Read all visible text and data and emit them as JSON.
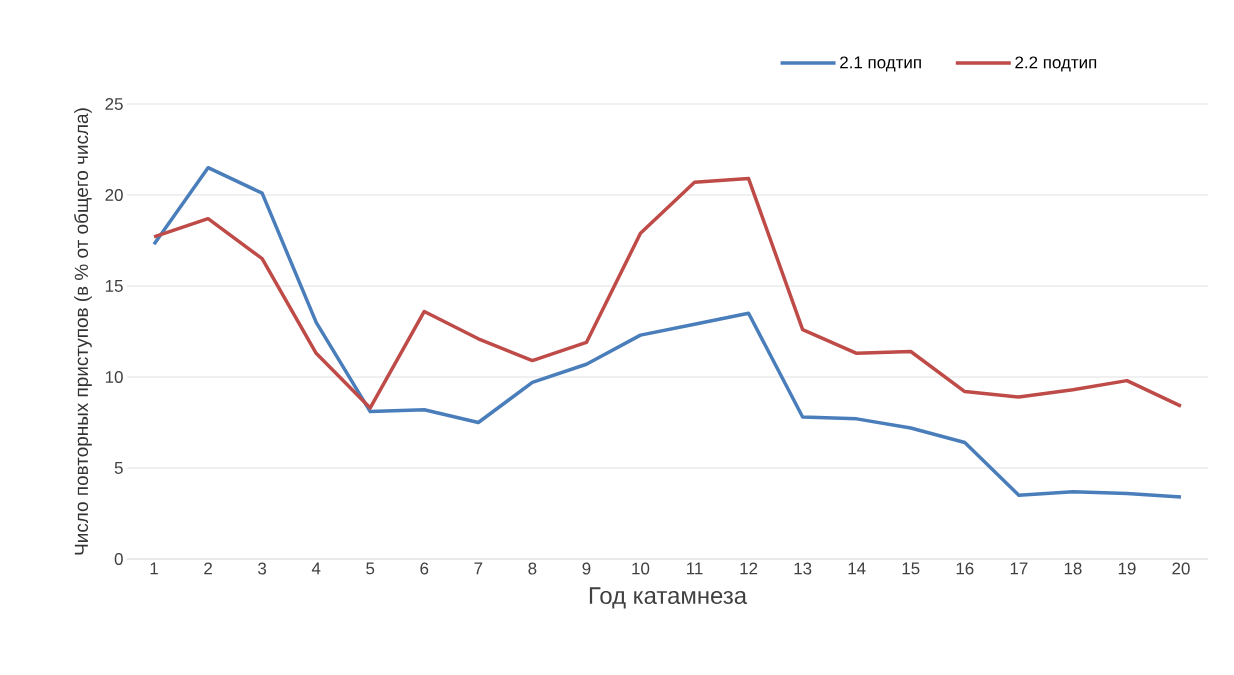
{
  "chart_data": {
    "type": "line",
    "xlabel": "Год катамнеза",
    "ylabel": "Число повторных приступов (в % от  общего числа)",
    "categories": [
      "1",
      "2",
      "3",
      "4",
      "5",
      "6",
      "7",
      "8",
      "9",
      "10",
      "11",
      "12",
      "13",
      "14",
      "15",
      "16",
      "17",
      "18",
      "19",
      "20"
    ],
    "series": [
      {
        "name": "2.1 подтип",
        "color": "#4a7ebb",
        "values": [
          17.3,
          21.5,
          20.1,
          13.0,
          8.1,
          8.2,
          7.5,
          9.7,
          10.7,
          12.3,
          12.9,
          13.5,
          7.8,
          7.7,
          7.2,
          6.4,
          3.5,
          3.7,
          3.6,
          3.4
        ]
      },
      {
        "name": "2.2 подтип",
        "color": "#be4b48",
        "values": [
          17.7,
          18.7,
          16.5,
          11.3,
          8.3,
          13.6,
          12.1,
          10.9,
          11.9,
          17.9,
          20.7,
          20.9,
          12.6,
          11.3,
          11.4,
          9.2,
          8.9,
          9.3,
          9.8,
          8.4
        ]
      }
    ],
    "ylim": [
      0,
      25
    ],
    "yticks": [
      0,
      5,
      10,
      15,
      20,
      25
    ],
    "grid": "y",
    "legend": "top right",
    "marker": "none",
    "line_style": "solid"
  }
}
